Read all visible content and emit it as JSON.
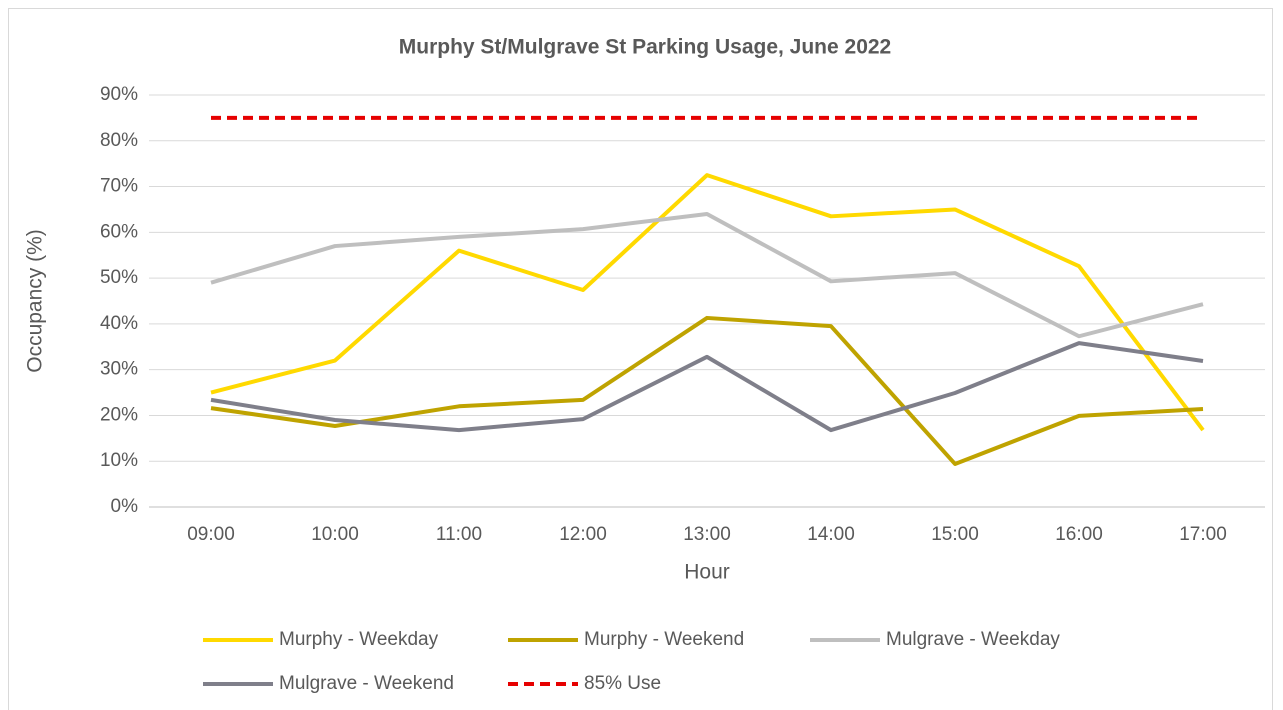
{
  "chart_data": {
    "type": "line",
    "title": "Murphy St/Mulgrave St Parking Usage, June 2022",
    "x_label": "Hour",
    "y_label": "Occupancy (%)",
    "categories": [
      "09:00",
      "10:00",
      "11:00",
      "12:00",
      "13:00",
      "14:00",
      "15:00",
      "16:00",
      "17:00"
    ],
    "series": [
      {
        "name": "Murphy - Weekday",
        "color": "#FFD900",
        "values": [
          25,
          32,
          56,
          47.4,
          72.5,
          63.5,
          65,
          52.6,
          16.8
        ]
      },
      {
        "name": "Murphy - Weekend",
        "color": "#BFA300",
        "values": [
          21.6,
          17.7,
          22,
          23.4,
          41.3,
          39.5,
          9.4,
          19.9,
          21.4
        ]
      },
      {
        "name": "Mulgrave - Weekday",
        "color": "#BFBFBF",
        "values": [
          49,
          57,
          59,
          60.7,
          64,
          49.3,
          51.1,
          37.3,
          44.3
        ]
      },
      {
        "name": "Mulgrave - Weekend",
        "color": "#7F7F8A",
        "values": [
          23.4,
          19,
          16.8,
          19.2,
          32.8,
          16.8,
          24.9,
          35.8,
          31.9
        ]
      },
      {
        "name": "85% Use",
        "color": "#E60000",
        "dashed": true,
        "values": [
          85,
          85,
          85,
          85,
          85,
          85,
          85,
          85,
          85
        ]
      }
    ],
    "ylim": [
      0,
      90
    ],
    "yticks": [
      {
        "value": 0,
        "label": "0%"
      },
      {
        "value": 10,
        "label": "10%"
      },
      {
        "value": 20,
        "label": "20%"
      },
      {
        "value": 30,
        "label": "30%"
      },
      {
        "value": 40,
        "label": "40%"
      },
      {
        "value": 50,
        "label": "50%"
      },
      {
        "value": 60,
        "label": "60%"
      },
      {
        "value": 70,
        "label": "70%"
      },
      {
        "value": 80,
        "label": "80%"
      },
      {
        "value": 90,
        "label": "90%"
      }
    ],
    "grid": true,
    "legend": "bottom"
  }
}
